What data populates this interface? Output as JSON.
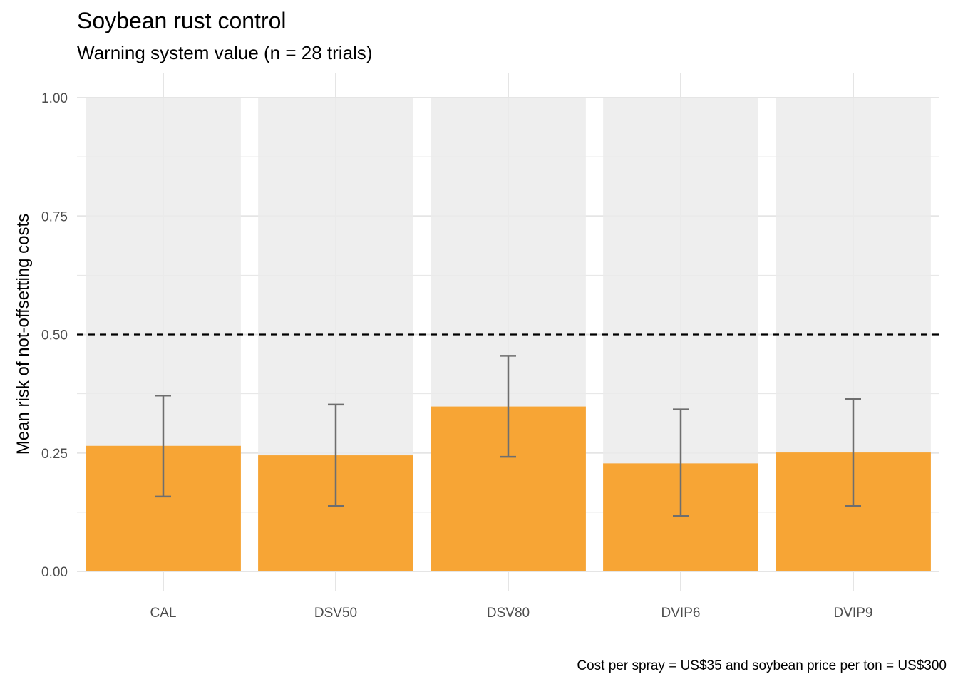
{
  "chart_data": {
    "type": "bar",
    "title": "Soybean rust control",
    "subtitle": "Warning system value (n = 28 trials)",
    "xlabel": "",
    "ylabel": "Mean risk of not-offsetting costs",
    "caption": "Cost per spray = US$35 and soybean price per ton = US$300",
    "categories": [
      "CAL",
      "DSV50",
      "DSV80",
      "DVIP6",
      "DVIP9"
    ],
    "values": [
      0.265,
      0.245,
      0.348,
      0.228,
      0.251
    ],
    "error_low": [
      0.158,
      0.138,
      0.242,
      0.117,
      0.138
    ],
    "error_high": [
      0.371,
      0.352,
      0.455,
      0.342,
      0.364
    ],
    "background_value": 1.0,
    "reference_line": 0.5,
    "ylim": [
      0,
      1
    ],
    "yticks": [
      0,
      0.25,
      0.5,
      0.75,
      1
    ],
    "ytick_labels": [
      "0.00",
      "0.25",
      "0.50",
      "0.75",
      "1.00"
    ],
    "grid": true,
    "legend": "none",
    "colors": {
      "bar": "#F7A535",
      "background_bar": "#EBEBEB",
      "error_bar": "#6E6E6E",
      "grid": "#E5E5E5",
      "reference_line": "#000000"
    }
  }
}
